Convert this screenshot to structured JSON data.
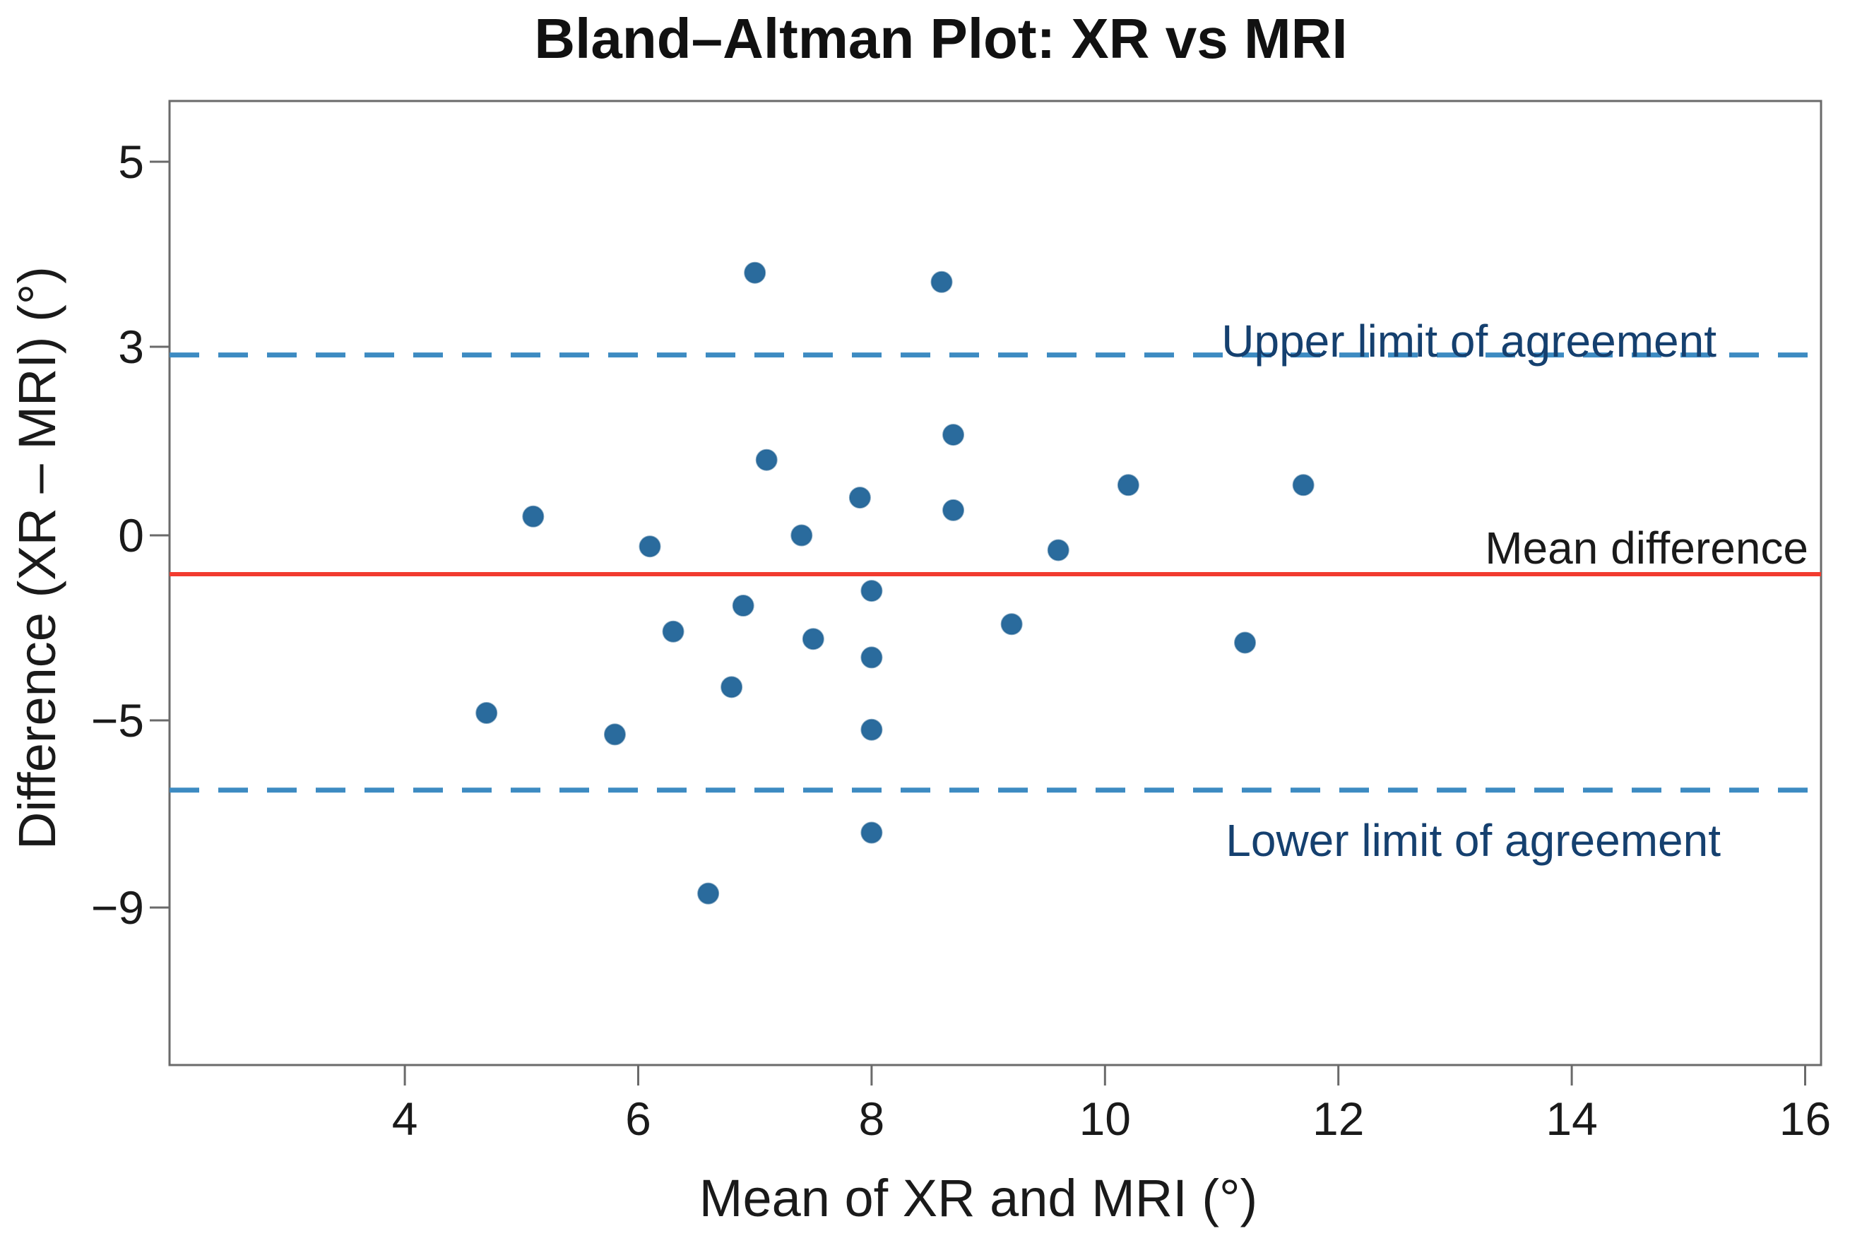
{
  "figure": {
    "title": "Bland–Altman Plot: XR vs MRI"
  },
  "chart_data": {
    "type": "scatter",
    "title": "Bland–Altman Plot: XR vs MRI",
    "xlabel": "Mean of XR and MRI (°)",
    "ylabel": "Difference (XR – MRI) (°)",
    "x_ticks": [
      4,
      6,
      8,
      10,
      12,
      14,
      16
    ],
    "y_ticks": [
      5,
      3,
      0,
      -5,
      -9
    ],
    "xlim": [
      2.0,
      16.1
    ],
    "ylim": [
      -12.4,
      5.7
    ],
    "grid": false,
    "legend": "none",
    "point_color": "#2A6B9D",
    "points": [
      [
        7.0,
        3.8
      ],
      [
        8.6,
        3.7
      ],
      [
        7.1,
        1.2
      ],
      [
        8.7,
        1.6
      ],
      [
        8.7,
        0.4
      ],
      [
        5.1,
        0.3
      ],
      [
        7.4,
        0.0
      ],
      [
        7.9,
        0.6
      ],
      [
        10.2,
        0.8
      ],
      [
        11.7,
        0.8
      ],
      [
        6.1,
        -0.3
      ],
      [
        9.6,
        -0.4
      ],
      [
        8.0,
        -1.5
      ],
      [
        6.9,
        -1.9
      ],
      [
        6.3,
        -2.6
      ],
      [
        7.5,
        -2.8
      ],
      [
        9.2,
        -2.4
      ],
      [
        11.2,
        -2.9
      ],
      [
        8.0,
        -3.3
      ],
      [
        6.8,
        -4.1
      ],
      [
        4.7,
        -4.8
      ],
      [
        8.0,
        -5.2
      ],
      [
        5.8,
        -5.3
      ],
      [
        8.0,
        -7.4
      ],
      [
        6.6,
        -8.7
      ]
    ],
    "mean_line": {
      "value": -1.05,
      "label": "Mean difference",
      "color": "#F23B2F",
      "style": "solid"
    },
    "upper_line": {
      "value": 2.87,
      "label": "Upper limit of agreement",
      "color": "#3D8BC2",
      "style": "dashed"
    },
    "lower_line": {
      "value": -6.49,
      "label": "Lower limit of agreement",
      "color": "#3D8BC2",
      "style": "dashed"
    },
    "layout_note": "y-axis tick spacing is visually uniform although tick values (5,3,0,-5,-9) are unequally spaced"
  }
}
